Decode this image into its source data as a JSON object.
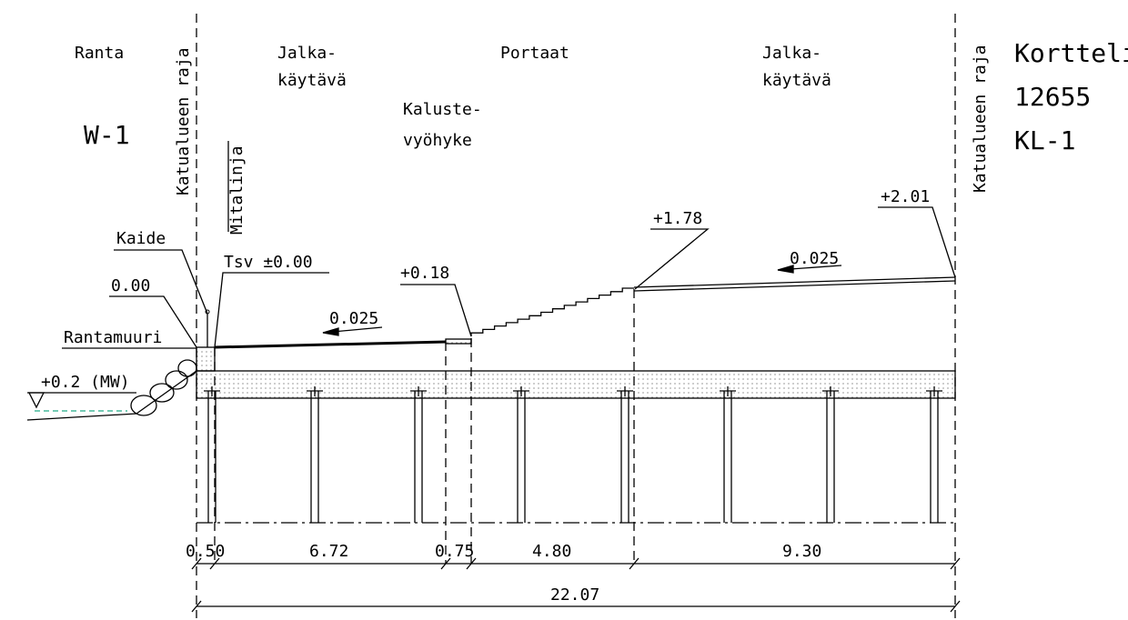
{
  "zones": {
    "left": {
      "name": "Ranta",
      "code": "W-1"
    },
    "walkway_left": {
      "line1": "Jalka-",
      "line2": "käytävä"
    },
    "stairs": "Portaat",
    "furniture": {
      "line1": "Kaluste-",
      "line2": "vyöhyke"
    },
    "walkway_right": {
      "line1": "Jalka-",
      "line2": "käytävä"
    },
    "right": {
      "line1": "Kortteli",
      "line2": "12655",
      "line3": "KL-1"
    }
  },
  "boundaries": {
    "left": "Katualueen raja",
    "right": "Katualueen raja",
    "survey_line": "Mitalinja"
  },
  "levels": {
    "top_right": "+2.01",
    "stairs_top": "+1.78",
    "stairs_bottom": "+0.18",
    "tsv": "Tsv ±0.00",
    "wall_top": "0.00",
    "water": "+0.2 (MW)"
  },
  "slopes": {
    "upper": "0.025",
    "lower": "0.025"
  },
  "parts": {
    "railing": "Kaide",
    "shore_wall": "Rantamuuri"
  },
  "dimensions": {
    "segments": [
      "0.50",
      "6.72",
      "0.75",
      "4.80",
      "9.30"
    ],
    "total": "22.07"
  }
}
